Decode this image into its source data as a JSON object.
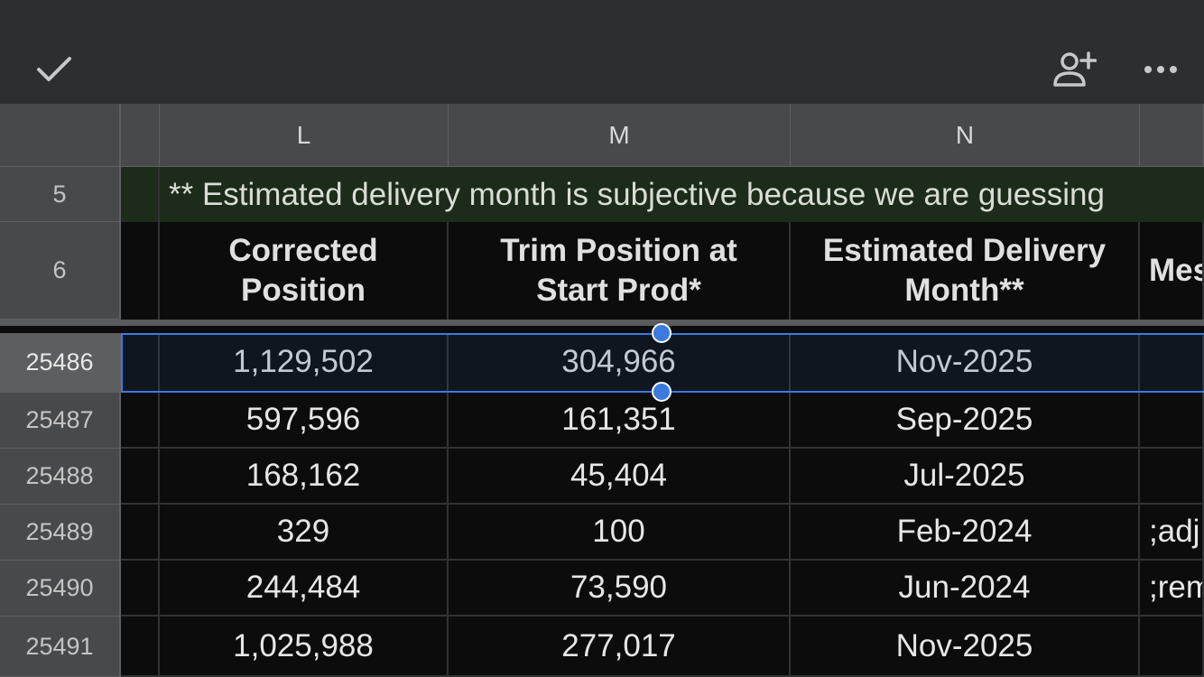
{
  "toolbar": {
    "done_icon": "check-icon",
    "share_icon": "add-person-icon",
    "more_icon": "more-horizontal-icon"
  },
  "columns": [
    "L",
    "M",
    "N"
  ],
  "rows": {
    "note_row_number": "5",
    "header_row_number": "6",
    "note_text": "** Estimated delivery month is subjective because we are guessing",
    "headers": {
      "L": "Corrected Position",
      "M": "Trim Position at Start Prod*",
      "N": "Estimated Delivery Month**",
      "O_partial": "Mes"
    },
    "data": [
      {
        "row": "25486",
        "L": "1,129,502",
        "M": "304,966",
        "N": "Nov-2025",
        "O": ""
      },
      {
        "row": "25487",
        "L": "597,596",
        "M": "161,351",
        "N": "Sep-2025",
        "O": ""
      },
      {
        "row": "25488",
        "L": "168,162",
        "M": "45,404",
        "N": "Jul-2025",
        "O": ""
      },
      {
        "row": "25489",
        "L": "329",
        "M": "100",
        "N": "Feb-2024",
        "O": ";adj"
      },
      {
        "row": "25490",
        "L": "244,484",
        "M": "73,590",
        "N": "Jun-2024",
        "O": ";rem"
      },
      {
        "row": "25491",
        "L": "1,025,988",
        "M": "277,017",
        "N": "Nov-2025",
        "O": ""
      }
    ]
  },
  "selection": {
    "row": "25486"
  },
  "colors": {
    "toolbar_bg": "#2d2e30",
    "header_bg": "#48494b",
    "note_bg": "#1c2b1a",
    "selection": "#3b7be0",
    "cell_bg": "#0c0c0c"
  }
}
